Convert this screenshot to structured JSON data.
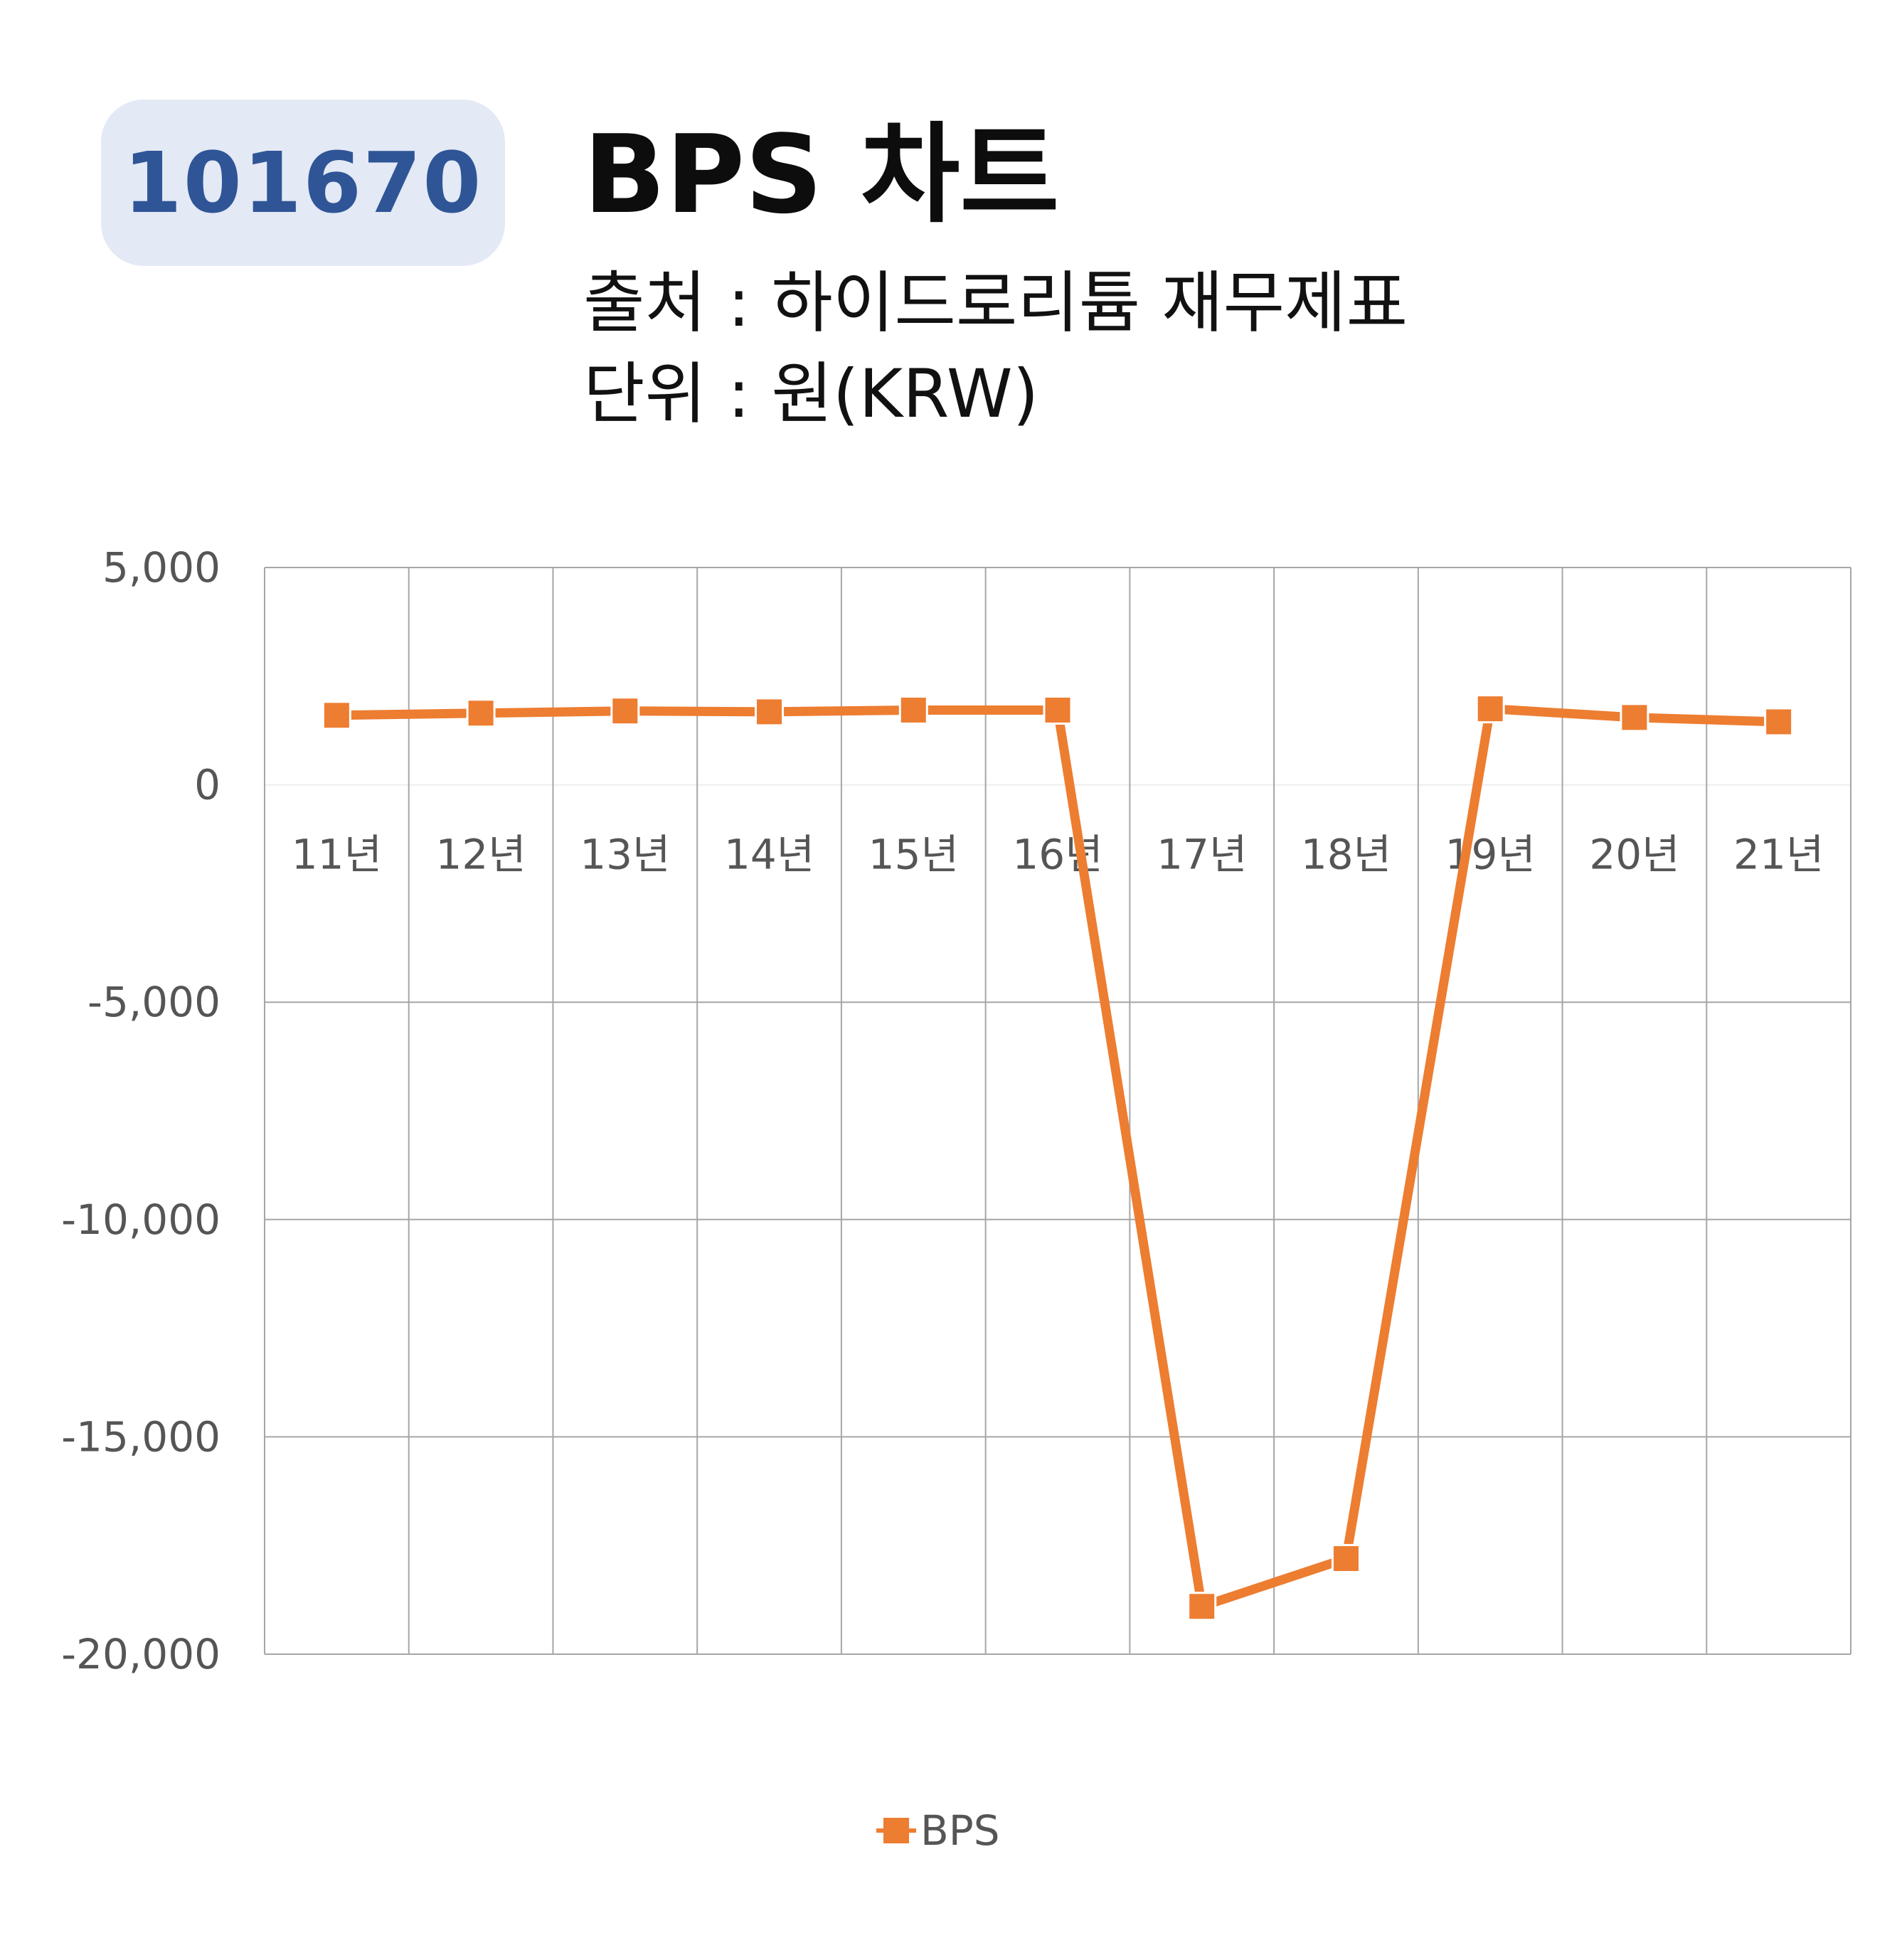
{
  "badge": {
    "code": "101670"
  },
  "header": {
    "title": "BPS 차트",
    "source": "출처 : 하이드로리튬 재무제표",
    "unit": "단위 : 원(KRW)"
  },
  "chart_data": {
    "type": "line",
    "categories": [
      "11년",
      "12년",
      "13년",
      "14년",
      "15년",
      "16년",
      "17년",
      "18년",
      "19년",
      "20년",
      "21년"
    ],
    "series": [
      {
        "name": "BPS",
        "color": "#ed7d31",
        "marker": "square",
        "values": [
          1600,
          1650,
          1700,
          1680,
          1720,
          1720,
          -18900,
          -17800,
          1750,
          1550,
          1450
        ]
      }
    ],
    "ylim": [
      -20000,
      5000
    ],
    "yticks": [
      5000,
      0,
      -5000,
      -10000,
      -15000,
      -20000
    ],
    "ytick_labels": [
      "5,000",
      "0",
      "-5,000",
      "-10,000",
      "-15,000",
      "-20,000"
    ],
    "grid": true,
    "legend": "bottom",
    "title": "",
    "xlabel": "",
    "ylabel": ""
  }
}
